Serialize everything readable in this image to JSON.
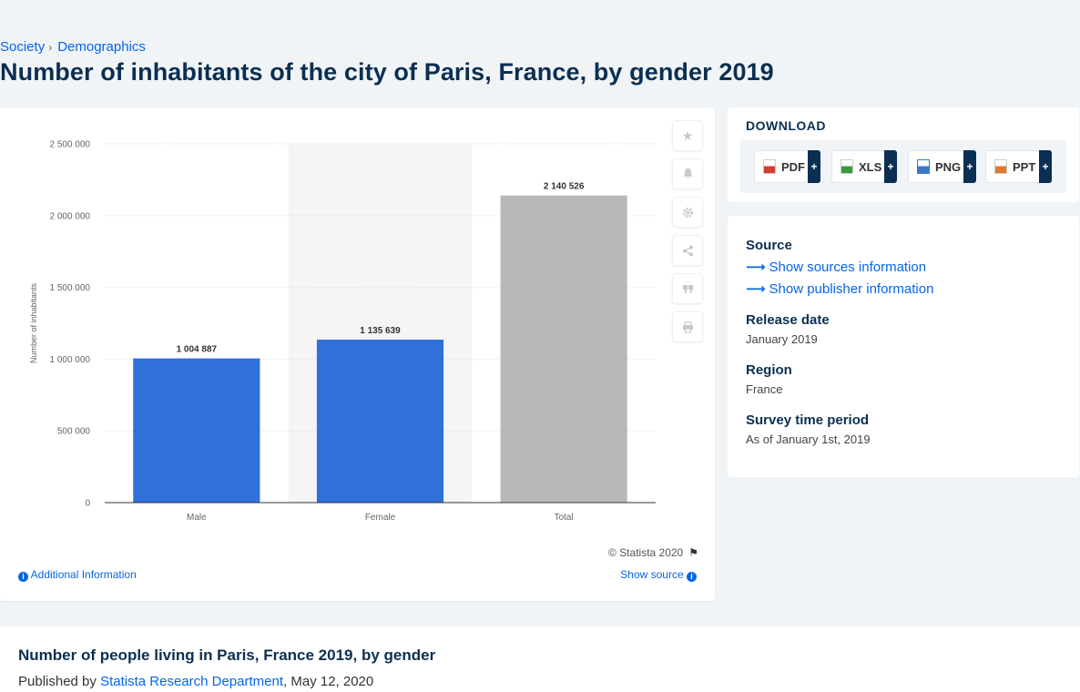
{
  "breadcrumb": {
    "items": [
      "Society",
      "Demographics"
    ]
  },
  "page_title": "Number of inhabitants of the city of Paris, France, by gender 2019",
  "chart_data": {
    "type": "bar",
    "categories": [
      "Male",
      "Female",
      "Total"
    ],
    "values": [
      1004887,
      1135639,
      2140526
    ],
    "value_labels": [
      "1 004 887",
      "1 135 639",
      "2 140 526"
    ],
    "bar_colors": [
      "#2f70d9",
      "#2f70d9",
      "#b8b8b8"
    ],
    "highlight_category": "Female",
    "ylabel": "Number of inhabitants",
    "xlabel": "",
    "ylim": [
      0,
      2500000
    ],
    "yticks": [
      0,
      500000,
      1000000,
      1500000,
      2000000,
      2500000
    ],
    "ytick_labels": [
      "0",
      "500 000",
      "1 000 000",
      "1 500 000",
      "2 000 000",
      "2 500 000"
    ],
    "grid": true,
    "legend": "none"
  },
  "tools": [
    "star-icon",
    "bell-icon",
    "gear-icon",
    "share-icon",
    "quote-icon",
    "print-icon"
  ],
  "copyright": "© Statista 2020",
  "additional_info": "Additional Information",
  "show_source": "Show source",
  "download": {
    "title": "DOWNLOAD",
    "formats": [
      {
        "label": "PDF",
        "color": "#d63b2f"
      },
      {
        "label": "XLS",
        "color": "#3a9b3a"
      },
      {
        "label": "PNG",
        "color": "#3a78c9"
      },
      {
        "label": "PPT",
        "color": "#e3782b"
      }
    ],
    "plus": "+"
  },
  "meta": {
    "source_label": "Source",
    "show_sources": "Show sources information",
    "show_publisher": "Show publisher information",
    "release_date_label": "Release date",
    "release_date": "January 2019",
    "region_label": "Region",
    "region": "France",
    "survey_label": "Survey time period",
    "survey_period": "As of January 1st, 2019"
  },
  "description": {
    "title": "Number of people living in Paris, France 2019, by gender",
    "published_prefix": "Published by",
    "publisher": "Statista Research Department",
    "date": ", May 12, 2020"
  }
}
